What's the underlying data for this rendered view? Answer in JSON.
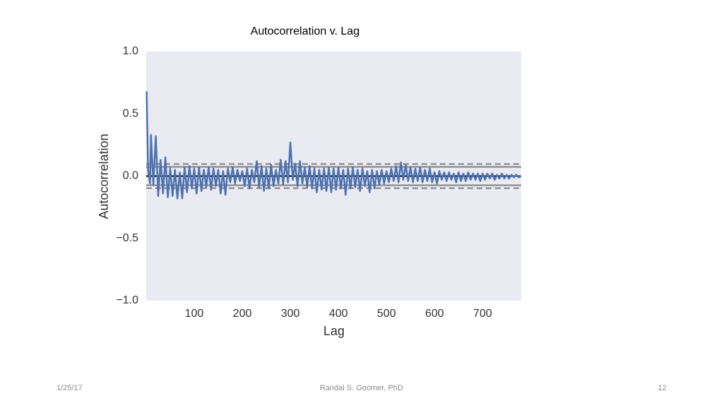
{
  "chart_data": {
    "type": "line",
    "title": "Autocorrelation v. Lag",
    "x_label": "Lag",
    "y_label": "Autocorrelation",
    "x": [
      1,
      4,
      8,
      10,
      15,
      20,
      25,
      30,
      35,
      40,
      45,
      50,
      55,
      60,
      65,
      70,
      75,
      80,
      85,
      90,
      95,
      100,
      105,
      110,
      115,
      120,
      125,
      130,
      135,
      140,
      145,
      150,
      155,
      160,
      165,
      170,
      175,
      180,
      185,
      190,
      195,
      200,
      205,
      210,
      215,
      220,
      225,
      230,
      235,
      240,
      245,
      250,
      255,
      260,
      265,
      270,
      275,
      280,
      285,
      290,
      295,
      300,
      305,
      310,
      315,
      320,
      325,
      330,
      335,
      340,
      345,
      350,
      355,
      360,
      365,
      370,
      375,
      380,
      385,
      390,
      395,
      400,
      405,
      410,
      415,
      420,
      425,
      430,
      435,
      440,
      445,
      450,
      455,
      460,
      465,
      470,
      475,
      480,
      485,
      490,
      495,
      500,
      505,
      510,
      515,
      520,
      525,
      530,
      535,
      540,
      545,
      550,
      555,
      560,
      565,
      570,
      575,
      580,
      585,
      590,
      595,
      600,
      605,
      610,
      615,
      620,
      625,
      630,
      635,
      640,
      645,
      650,
      655,
      660,
      665,
      670,
      675,
      680,
      685,
      690,
      695,
      700,
      705,
      710,
      715,
      720,
      725,
      730,
      735,
      740,
      745,
      750,
      755,
      760,
      765,
      770,
      775,
      780
    ],
    "values": [
      0.68,
      0.05,
      -0.06,
      0.33,
      -0.07,
      0.32,
      -0.16,
      0.13,
      -0.14,
      0.15,
      -0.17,
      0.06,
      -0.16,
      0.05,
      -0.18,
      0.03,
      -0.18,
      0.07,
      -0.13,
      0.08,
      -0.1,
      0.06,
      -0.14,
      0.07,
      -0.12,
      0.05,
      -0.09,
      0.07,
      -0.11,
      0.06,
      -0.08,
      0.05,
      -0.14,
      0.04,
      -0.15,
      0.06,
      -0.05,
      0.07,
      -0.06,
      0.05,
      -0.04,
      0.04,
      -0.08,
      0.06,
      -0.1,
      0.05,
      -0.05,
      0.12,
      -0.09,
      0.08,
      -0.12,
      0.06,
      -0.1,
      0.09,
      -0.08,
      0.05,
      -0.06,
      0.13,
      -0.07,
      0.12,
      -0.05,
      0.27,
      -0.03,
      0.1,
      -0.08,
      0.12,
      -0.06,
      0.07,
      -0.09,
      0.08,
      -0.1,
      0.06,
      -0.13,
      0.05,
      -0.11,
      0.06,
      -0.12,
      0.07,
      -0.13,
      0.06,
      -0.11,
      0.07,
      -0.1,
      0.05,
      -0.15,
      0.06,
      -0.1,
      0.07,
      -0.09,
      0.05,
      -0.12,
      0.06,
      -0.08,
      0.04,
      -0.13,
      0.05,
      -0.1,
      0.04,
      -0.07,
      0.05,
      -0.06,
      0.04,
      -0.05,
      0.06,
      -0.04,
      0.08,
      -0.05,
      0.11,
      -0.03,
      0.09,
      -0.04,
      0.07,
      -0.05,
      0.06,
      -0.04,
      0.07,
      -0.05,
      0.05,
      -0.04,
      0.06,
      -0.05,
      0.03,
      -0.06,
      0.04,
      -0.03,
      0.03,
      -0.04,
      0.03,
      -0.03,
      0.02,
      -0.05,
      0.03,
      -0.04,
      0.02,
      -0.04,
      0.03,
      -0.03,
      0.02,
      -0.03,
      0.02,
      -0.04,
      0.02,
      -0.03,
      0.02,
      -0.02,
      0.02,
      -0.03,
      0.01,
      -0.02,
      0.02,
      -0.02,
      0.01,
      -0.02,
      0.01,
      -0.01,
      0.01,
      -0.01,
      0.0
    ],
    "color": "#4c72b0",
    "reference_lines": [
      {
        "value": 0.097,
        "color": "#808080",
        "dashed": true
      },
      {
        "value": 0.074,
        "color": "#808080",
        "dashed": false
      },
      {
        "value": 0,
        "color": "#000000",
        "dashed": false
      },
      {
        "value": -0.074,
        "color": "#808080",
        "dashed": false
      },
      {
        "value": -0.097,
        "color": "#808080",
        "dashed": true
      }
    ],
    "xlim": [
      0,
      780
    ],
    "xticks": [
      100,
      200,
      300,
      400,
      500,
      600,
      700
    ],
    "ylim": [
      -1,
      1
    ],
    "yticks": [
      {
        "value": -1,
        "label": "−1.0"
      },
      {
        "value": -0.5,
        "label": "−0.5"
      },
      {
        "value": 0,
        "label": "0.0"
      },
      0.5,
      {
        "value": 1,
        "label": "1.0"
      }
    ],
    "grid": false
  },
  "footer": {
    "date": "1/25/17",
    "author": "Randal S. Goomer, PhD",
    "page": "12"
  }
}
